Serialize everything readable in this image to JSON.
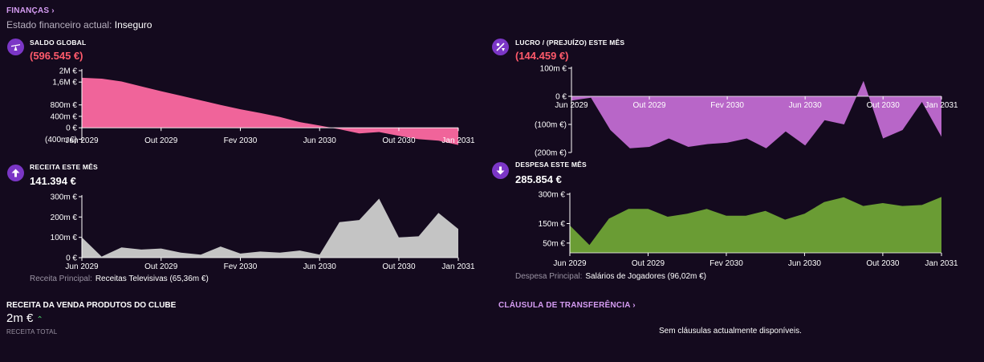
{
  "header": {
    "title": "FINANÇAS",
    "status_label": "Estado financeiro actual:",
    "status_value": "Inseguro"
  },
  "x_labels": [
    "Jun 2029",
    "Out 2029",
    "Fev 2030",
    "Jun 2030",
    "Out 2030",
    "Jan 2031"
  ],
  "widgets": {
    "balance": {
      "title": "SALDO GLOBAL",
      "value": "(596.545 €)",
      "icon": "scale-icon",
      "color": "#f0649a"
    },
    "profit": {
      "title": "LUCRO / (PREJUÍZO) ESTE MÊS",
      "value": "(144.459 €)",
      "icon": "percent-icon",
      "color": "#b866c8"
    },
    "revenue": {
      "title": "RECEITA ESTE MÊS",
      "value": "141.394 €",
      "icon": "arrow-up-icon",
      "color": "#c4c4c4",
      "principal_label": "Receita Principal:",
      "principal_value": "Receitas Televisivas (65,36m €)"
    },
    "expense": {
      "title": "DESPESA ESTE MÊS",
      "value": "285.854 €",
      "icon": "arrow-down-icon",
      "color": "#6a9c34",
      "principal_label": "Despesa Principal:",
      "principal_value": "Salários de Jogadores (96,02m €)"
    }
  },
  "sales": {
    "title": "RECEITA DA VENDA PRODUTOS DO CLUBE",
    "value": "2m €",
    "caption": "RECEITA TOTAL"
  },
  "transfer": {
    "title": "CLÁUSULA DE TRANSFERÊNCIA",
    "empty_message": "Sem cláusulas actualmente disponíveis."
  },
  "chart_data": [
    {
      "type": "area",
      "name": "balance",
      "x": [
        "Jun 2029",
        "Jul 2029",
        "Ago 2029",
        "Set 2029",
        "Out 2029",
        "Nov 2029",
        "Dez 2029",
        "Jan 2030",
        "Fev 2030",
        "Mar 2030",
        "Abr 2030",
        "Mai 2030",
        "Jun 2030",
        "Jul 2030",
        "Ago 2030",
        "Set 2030",
        "Out 2030",
        "Nov 2030",
        "Dez 2030",
        "Jan 2031"
      ],
      "values": [
        1.75,
        1.72,
        1.62,
        1.45,
        1.28,
        1.12,
        0.96,
        0.8,
        0.65,
        0.52,
        0.38,
        0.2,
        0.08,
        -0.05,
        -0.2,
        -0.15,
        -0.28,
        -0.4,
        -0.45,
        -0.6
      ],
      "unit": "m €",
      "yticks": [
        "2M €",
        "1,6M €",
        "800m €",
        "400m €",
        "0 €",
        "(400m €)"
      ],
      "ytick_values": [
        2,
        1.6,
        0.8,
        0.4,
        0,
        -0.4
      ],
      "ylim": [
        -0.5,
        2.0
      ]
    },
    {
      "type": "area",
      "name": "profit",
      "x": [
        "Jun 2029",
        "Jul 2029",
        "Ago 2029",
        "Set 2029",
        "Out 2029",
        "Nov 2029",
        "Dez 2029",
        "Jan 2030",
        "Fev 2030",
        "Mar 2030",
        "Abr 2030",
        "Mai 2030",
        "Jun 2030",
        "Jul 2030",
        "Ago 2030",
        "Set 2030",
        "Out 2030",
        "Nov 2030",
        "Dez 2030",
        "Jan 2031"
      ],
      "values": [
        -15,
        -5,
        -120,
        -185,
        -180,
        -150,
        -180,
        -170,
        -165,
        -150,
        -185,
        -125,
        -175,
        -85,
        -100,
        55,
        -150,
        -120,
        -20,
        -144
      ],
      "unit": "m €",
      "yticks": [
        "100m €",
        "0 €",
        "(100m €)",
        "(200m €)"
      ],
      "ytick_values": [
        100,
        0,
        -100,
        -200
      ],
      "ylim": [
        -200,
        100
      ]
    },
    {
      "type": "area",
      "name": "revenue",
      "x": [
        "Jun 2029",
        "Jul 2029",
        "Ago 2029",
        "Set 2029",
        "Out 2029",
        "Nov 2029",
        "Dez 2029",
        "Jan 2030",
        "Fev 2030",
        "Mar 2030",
        "Abr 2030",
        "Mai 2030",
        "Jun 2030",
        "Jul 2030",
        "Ago 2030",
        "Set 2030",
        "Out 2030",
        "Nov 2030",
        "Dez 2030",
        "Jan 2031"
      ],
      "values": [
        100,
        5,
        50,
        40,
        45,
        25,
        15,
        55,
        20,
        30,
        25,
        35,
        15,
        175,
        185,
        290,
        100,
        105,
        220,
        141
      ],
      "unit": "m €",
      "yticks": [
        "300m €",
        "200m €",
        "100m €",
        "0 €"
      ],
      "ytick_values": [
        300,
        200,
        100,
        0
      ],
      "ylim": [
        0,
        300
      ]
    },
    {
      "type": "area",
      "name": "expense",
      "x": [
        "Jun 2029",
        "Jul 2029",
        "Ago 2029",
        "Set 2029",
        "Out 2029",
        "Nov 2029",
        "Dez 2029",
        "Jan 2030",
        "Fev 2030",
        "Mar 2030",
        "Abr 2030",
        "Mai 2030",
        "Jun 2030",
        "Jul 2030",
        "Ago 2030",
        "Set 2030",
        "Out 2030",
        "Nov 2030",
        "Dez 2030",
        "Jan 2031"
      ],
      "values": [
        140,
        40,
        175,
        225,
        225,
        185,
        200,
        225,
        190,
        190,
        215,
        170,
        200,
        260,
        285,
        240,
        255,
        240,
        245,
        286
      ],
      "unit": "m €",
      "yticks": [
        "300m €",
        "150m €",
        "50m €"
      ],
      "ytick_values": [
        300,
        150,
        50
      ],
      "ylim": [
        0,
        300
      ]
    }
  ]
}
